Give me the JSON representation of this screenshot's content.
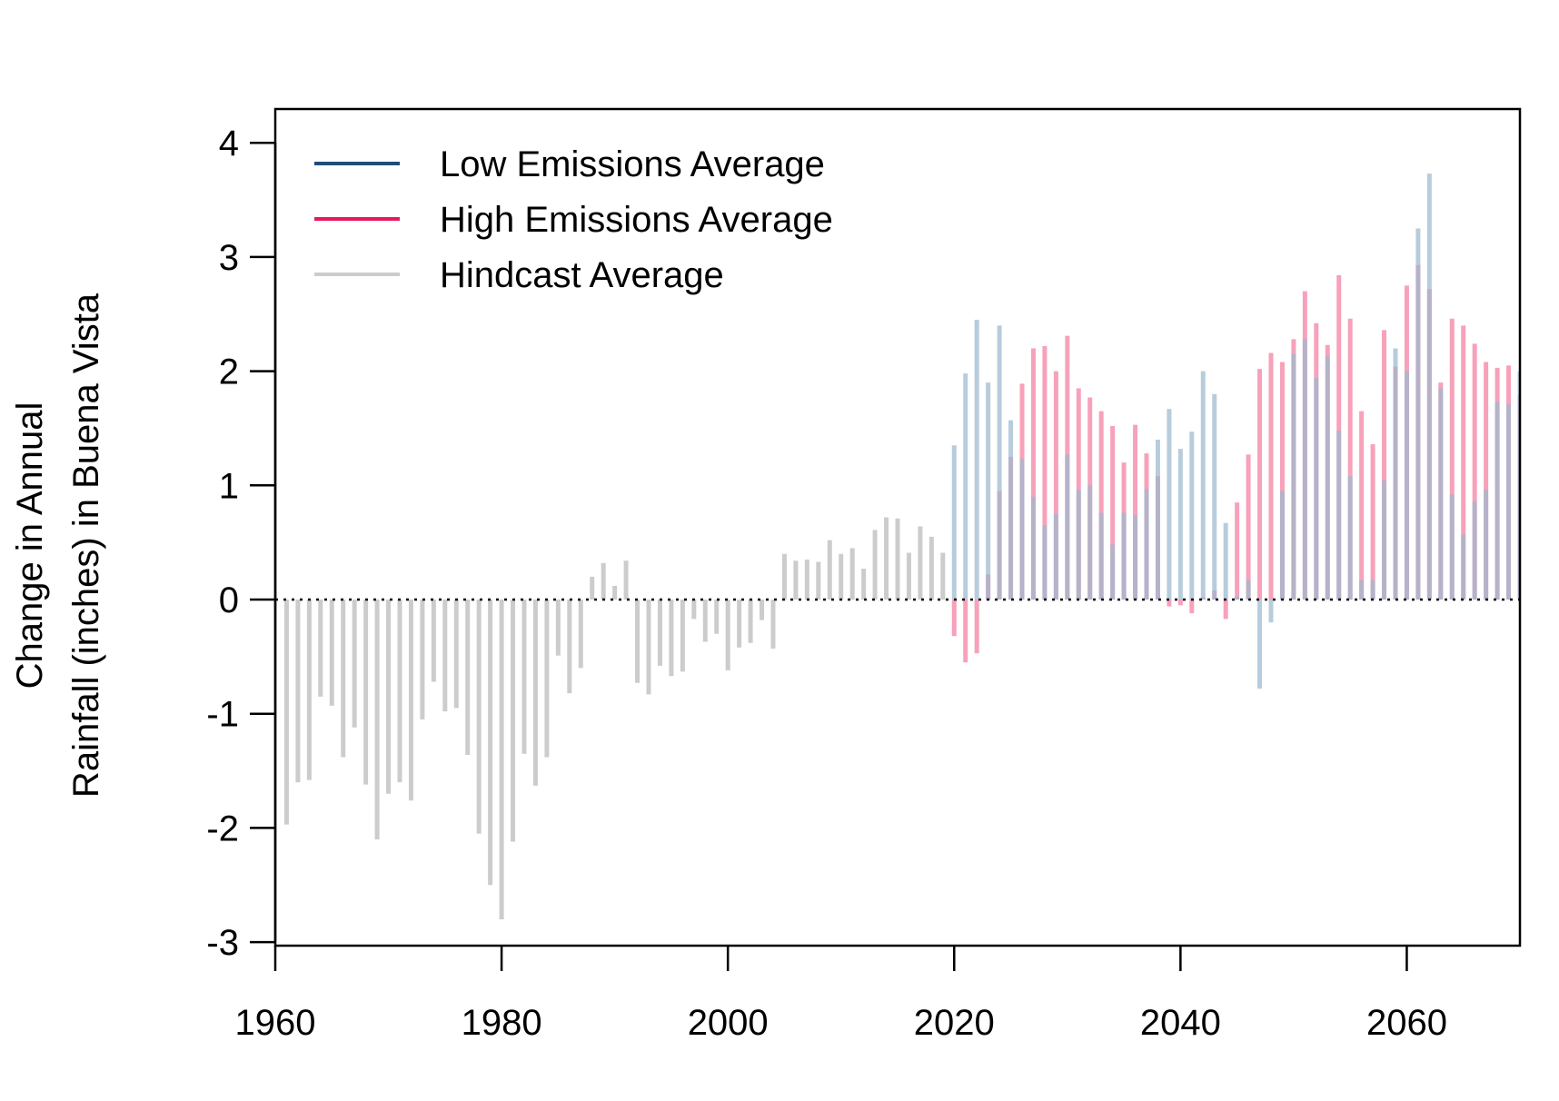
{
  "chart_data": {
    "type": "bar",
    "ylabel_lines": [
      "Change in Annual",
      "Rainfall (inches) in Buena Vista"
    ],
    "xlabel": "",
    "xlim": [
      1960,
      2070
    ],
    "ylim": [
      -3,
      4
    ],
    "x_ticks": [
      "1960",
      "1980",
      "2000",
      "2020",
      "2040",
      "2060"
    ],
    "y_ticks": [
      "-3",
      "-2",
      "-1",
      "0",
      "1",
      "2",
      "3",
      "4"
    ],
    "legend_position": "top-left",
    "reference_line": 0,
    "grid": false,
    "series": [
      {
        "name": "Low Emissions Average",
        "color": "#1f4e79",
        "bar_color": "#9bb9cf",
        "x": [
          2020,
          2021,
          2022,
          2023,
          2024,
          2025,
          2026,
          2027,
          2028,
          2029,
          2030,
          2031,
          2032,
          2033,
          2034,
          2035,
          2036,
          2037,
          2038,
          2039,
          2040,
          2041,
          2042,
          2043,
          2044,
          2045,
          2046,
          2047,
          2048,
          2049,
          2050,
          2051,
          2052,
          2053,
          2054,
          2055,
          2056,
          2057,
          2058,
          2059,
          2060,
          2061,
          2062,
          2063,
          2064,
          2065,
          2066,
          2067,
          2068,
          2069,
          2070
        ],
        "values": [
          1.35,
          1.98,
          2.45,
          1.9,
          2.4,
          1.57,
          1.23,
          0.9,
          0.65,
          0.75,
          1.27,
          0.96,
          1.0,
          0.76,
          0.48,
          0.76,
          0.74,
          0.97,
          1.4,
          1.67,
          1.32,
          1.47,
          2.0,
          1.8,
          0.67,
          0.03,
          0.17,
          -0.78,
          -0.2,
          0.95,
          2.15,
          2.28,
          1.94,
          2.13,
          1.48,
          1.08,
          0.17,
          0.17,
          1.04,
          2.2,
          2.0,
          3.25,
          3.73,
          1.85,
          0.92,
          0.57,
          0.86,
          0.96,
          1.73,
          1.71,
          2.0
        ]
      },
      {
        "name": "High Emissions Average",
        "color": "#e8185c",
        "bar_color": "#f7a1ba",
        "x": [
          2020,
          2021,
          2022,
          2023,
          2024,
          2025,
          2026,
          2027,
          2028,
          2029,
          2030,
          2031,
          2032,
          2033,
          2034,
          2035,
          2036,
          2037,
          2038,
          2039,
          2040,
          2041,
          2042,
          2043,
          2044,
          2045,
          2046,
          2047,
          2048,
          2049,
          2050,
          2051,
          2052,
          2053,
          2054,
          2055,
          2056,
          2057,
          2058,
          2059,
          2060,
          2061,
          2062,
          2063,
          2064,
          2065,
          2066,
          2067,
          2068,
          2069,
          2070
        ],
        "values": [
          -0.32,
          -0.55,
          -0.47,
          0.22,
          0.95,
          1.25,
          1.89,
          2.2,
          2.22,
          2.0,
          2.31,
          1.85,
          1.77,
          1.65,
          1.52,
          1.2,
          1.53,
          1.28,
          1.08,
          -0.06,
          -0.05,
          -0.12,
          0.02,
          0.08,
          -0.17,
          0.85,
          1.27,
          2.02,
          2.16,
          2.08,
          2.28,
          2.7,
          2.42,
          2.23,
          2.84,
          2.46,
          1.65,
          1.36,
          2.36,
          2.04,
          2.75,
          2.93,
          2.72,
          1.9,
          2.46,
          2.4,
          2.24,
          2.08,
          2.03,
          2.05,
          1.79
        ]
      },
      {
        "name": "Hindcast Average",
        "color": "#cccccc",
        "bar_color": "#cccccc",
        "x": [
          1961,
          1962,
          1963,
          1964,
          1965,
          1966,
          1967,
          1968,
          1969,
          1970,
          1971,
          1972,
          1973,
          1974,
          1975,
          1976,
          1977,
          1978,
          1979,
          1980,
          1981,
          1982,
          1983,
          1984,
          1985,
          1986,
          1987,
          1988,
          1989,
          1990,
          1991,
          1992,
          1993,
          1994,
          1995,
          1996,
          1997,
          1998,
          1999,
          2000,
          2001,
          2002,
          2003,
          2004,
          2005,
          2006,
          2007,
          2008,
          2009,
          2010,
          2011,
          2012,
          2013,
          2014,
          2015,
          2016,
          2017,
          2018,
          2019
        ],
        "values": [
          -1.97,
          -1.6,
          -1.58,
          -0.85,
          -0.93,
          -1.38,
          -1.12,
          -1.62,
          -2.1,
          -1.7,
          -1.6,
          -1.76,
          -1.05,
          -0.72,
          -0.98,
          -0.95,
          -1.36,
          -2.05,
          -2.5,
          -2.8,
          -2.12,
          -1.35,
          -1.63,
          -1.38,
          -0.49,
          -0.82,
          -0.6,
          0.2,
          0.32,
          0.12,
          0.34,
          -0.73,
          -0.83,
          -0.58,
          -0.67,
          -0.63,
          -0.17,
          -0.37,
          -0.3,
          -0.62,
          -0.42,
          -0.38,
          -0.18,
          -0.43,
          0.4,
          0.34,
          0.35,
          0.33,
          0.52,
          0.4,
          0.45,
          0.27,
          0.61,
          0.72,
          0.71,
          0.41,
          0.64,
          0.55,
          0.41
        ]
      }
    ]
  }
}
